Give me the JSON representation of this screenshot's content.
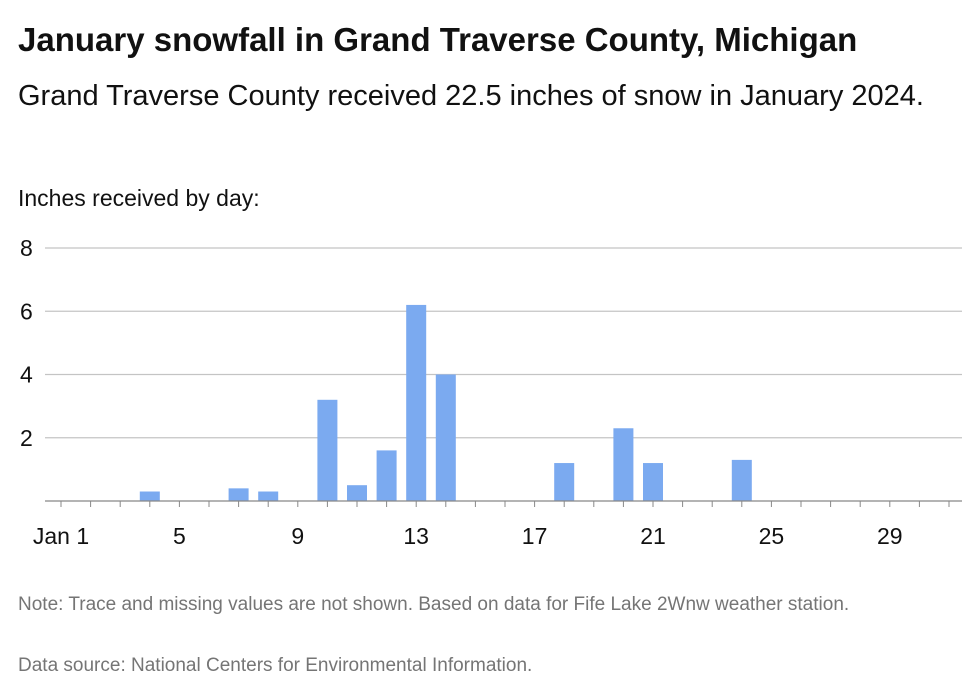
{
  "title": "January snowfall in Grand Traverse County, Michigan",
  "subtitle": "Grand Traverse County received 22.5 inches of snow in January 2024.",
  "axis_caption": "Inches received by day:",
  "note": "Note: Trace and missing values are not shown. Based on data for Fife Lake 2Wnw weather station.",
  "source": "Data source: National Centers for Environmental Information.",
  "colors": {
    "bar": "#7baaf0",
    "grid": "#c4c4c4",
    "axis": "#888888"
  },
  "chart_data": {
    "type": "bar",
    "x": [
      4,
      7,
      8,
      10,
      11,
      12,
      13,
      14,
      18,
      20,
      21,
      24
    ],
    "values": [
      0.3,
      0.4,
      0.3,
      3.2,
      0.5,
      1.6,
      6.2,
      4.0,
      1.2,
      2.3,
      1.2,
      1.3
    ],
    "xlim": [
      1,
      31
    ],
    "xticks": [
      1,
      5,
      9,
      13,
      17,
      21,
      25,
      29
    ],
    "xtick_labels": [
      "Jan 1",
      "5",
      "9",
      "13",
      "17",
      "21",
      "25",
      "29"
    ],
    "ylim": [
      0,
      8
    ],
    "yticks": [
      2,
      4,
      6,
      8
    ],
    "ytick_labels": [
      "2",
      "4",
      "6",
      "8"
    ],
    "grid": true
  }
}
